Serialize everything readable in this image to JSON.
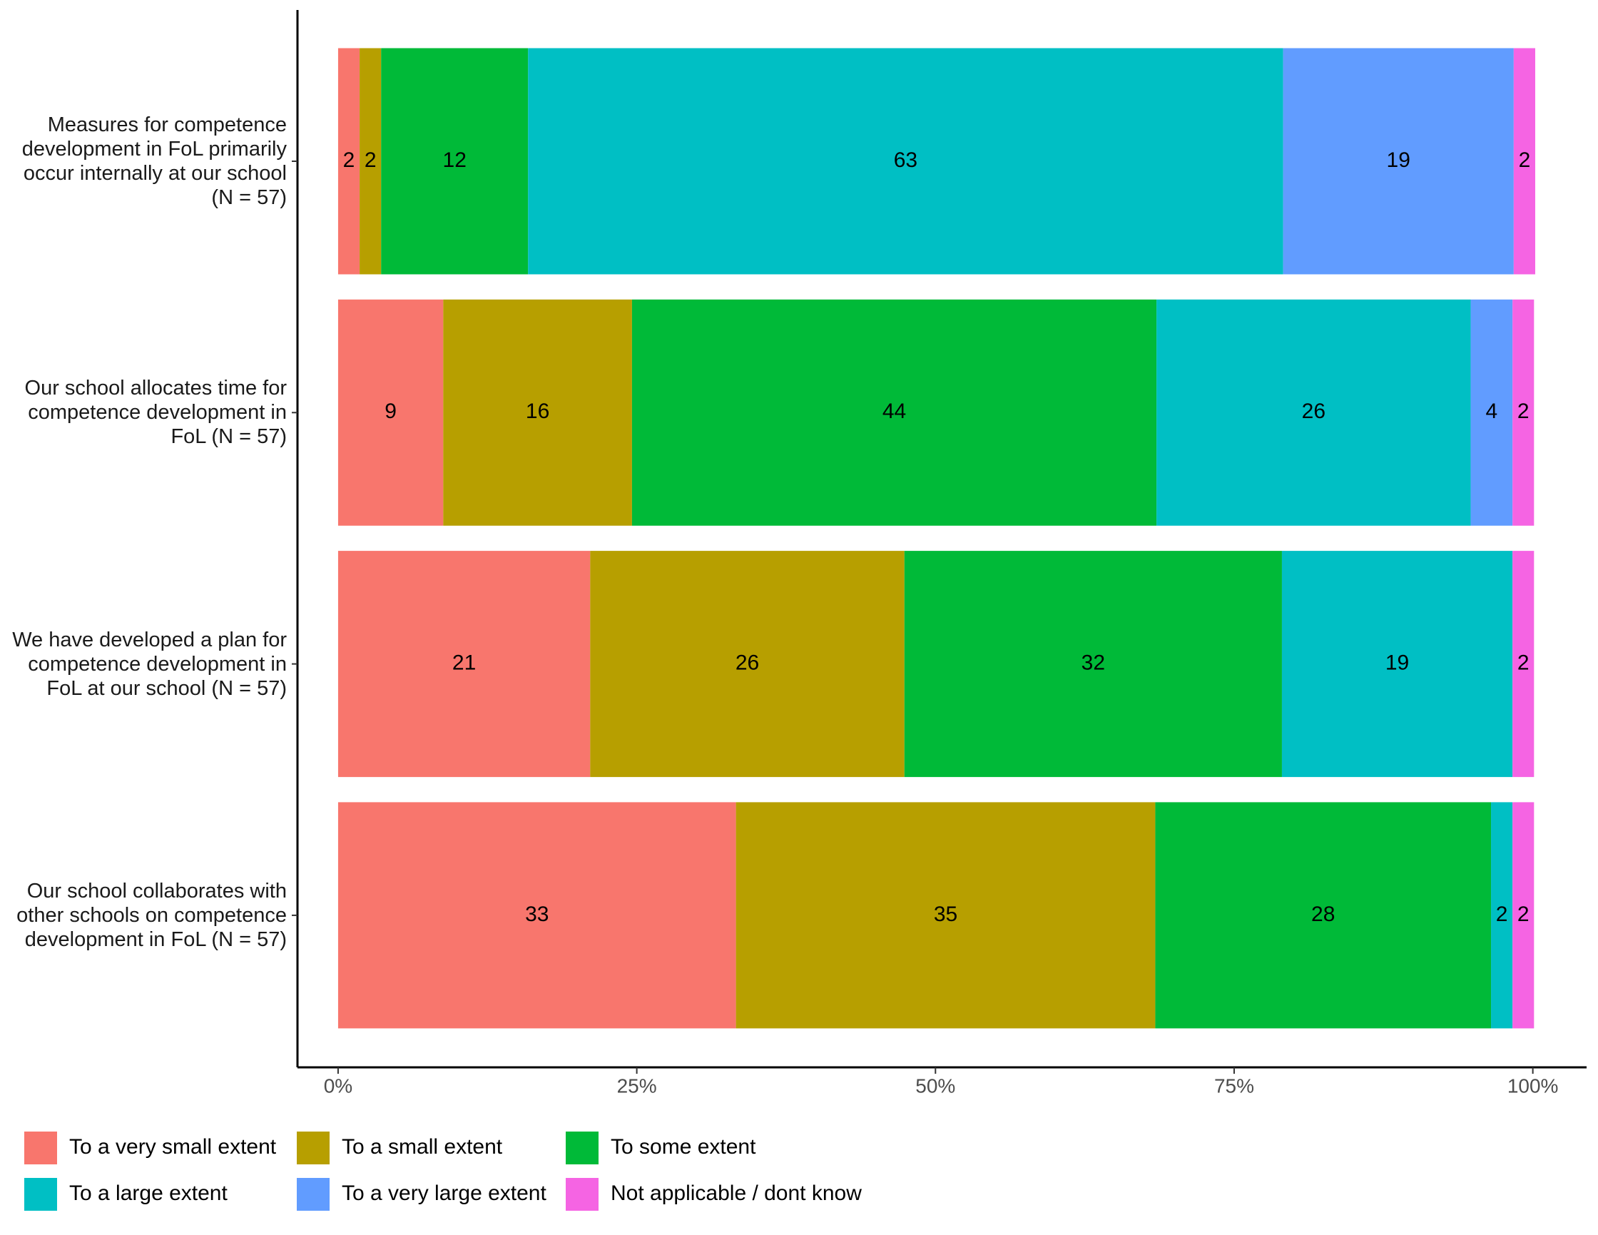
{
  "chart_data": {
    "type": "stacked-bar-horizontal",
    "categories": [
      "Measures for competence development in FoL primarily occur internally at our school (N = 57)",
      "Our school allocates time for competence development in FoL (N = 57)",
      "We have developed a plan for competence development in FoL at our school (N = 57)",
      "Our school collaborates with other schools on competence development in FoL (N = 57)"
    ],
    "series": [
      {
        "name": "To a very small extent",
        "color": "#F8766D",
        "values": [
          1.8,
          8.8,
          21.1,
          33.3
        ],
        "value_labels": [
          "2",
          "9",
          "21",
          "33"
        ]
      },
      {
        "name": "To a small extent",
        "color": "#B79F00",
        "values": [
          1.8,
          15.8,
          26.3,
          35.1
        ],
        "value_labels": [
          "2",
          "16",
          "26",
          "35"
        ]
      },
      {
        "name": "To some extent",
        "color": "#00BA38",
        "values": [
          12.3,
          43.9,
          31.6,
          28.1
        ],
        "value_labels": [
          "12",
          "44",
          "32",
          "28"
        ]
      },
      {
        "name": "To a large extent",
        "color": "#00BFC4",
        "values": [
          63.2,
          26.3,
          19.3,
          1.8
        ],
        "value_labels": [
          "63",
          "26",
          "19",
          "2"
        ]
      },
      {
        "name": "To a very large extent",
        "color": "#619CFF",
        "values": [
          19.3,
          3.5,
          null,
          null
        ],
        "value_labels": [
          "19",
          "4",
          null,
          null
        ]
      },
      {
        "name": "Not applicable / dont know",
        "color": "#F564E3",
        "values": [
          1.8,
          1.8,
          1.8,
          1.8
        ],
        "value_labels": [
          "2",
          "2",
          "2",
          "2"
        ]
      }
    ],
    "xlim": [
      -3.4,
      104.5
    ],
    "xticks": [
      {
        "value": 0,
        "label": "0%"
      },
      {
        "value": 25,
        "label": "25%"
      },
      {
        "value": 50,
        "label": "50%"
      },
      {
        "value": 75,
        "label": "75%"
      },
      {
        "value": 100,
        "label": "100%"
      }
    ],
    "legend": "bottom-left"
  }
}
